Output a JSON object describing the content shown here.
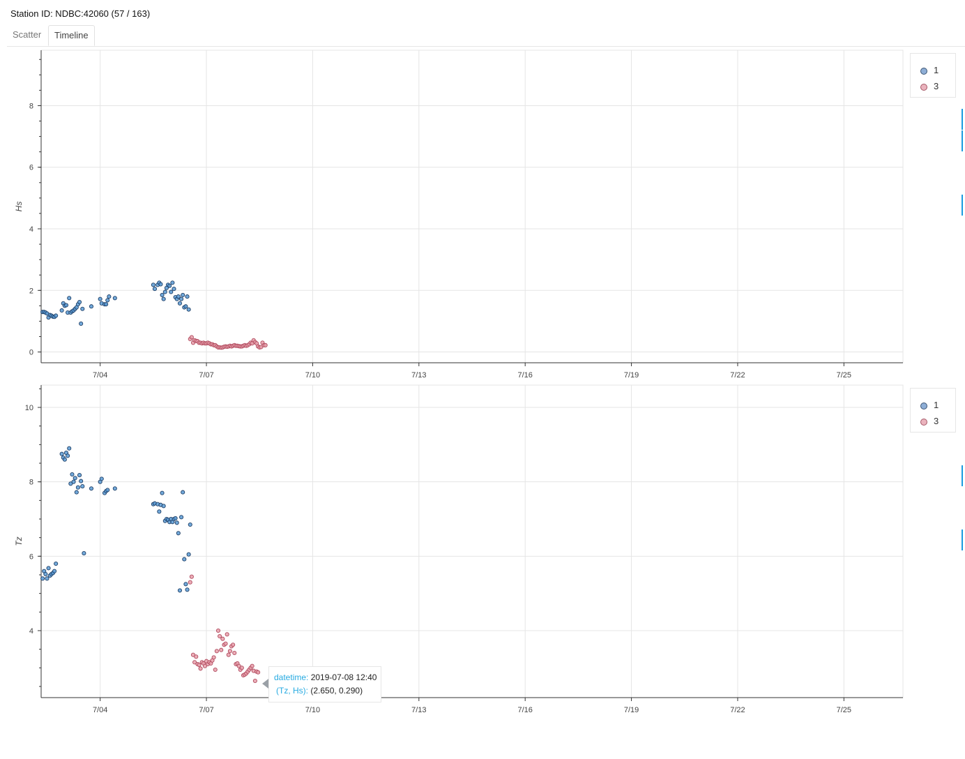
{
  "header": {
    "station_title": "Station ID: NDBC:42060 (57 / 163)"
  },
  "tabs": [
    {
      "label": "Scatter",
      "active": false
    },
    {
      "label": "Timeline",
      "active": true
    }
  ],
  "colors": {
    "series_1": "#5b9bd5",
    "series_1_edge": "#1f3f66",
    "series_3": "#e8a0ac",
    "series_3_edge": "#b04a5e",
    "grid": "#e5e5e5",
    "accent": "#1a9be0"
  },
  "tooltip": {
    "datetime_key": "datetime:",
    "datetime_value": "2019-07-08 12:40",
    "point_key": "(Tz, Hs):",
    "point_value": "(2.650, 0.290)"
  },
  "chart_data": [
    {
      "type": "scatter",
      "ylabel": "Hs",
      "xlabel": "",
      "x_unit": "days since 2019-07-01",
      "xlim_dates": [
        "2019-07-02 08:00",
        "2019-07-26 16:00"
      ],
      "ylim": [
        -0.35,
        9.8
      ],
      "x_ticks": [
        "7/04",
        "7/07",
        "7/10",
        "7/13",
        "7/16",
        "7/19",
        "7/22",
        "7/25"
      ],
      "y_ticks": [
        "0",
        "2",
        "4",
        "6",
        "8"
      ],
      "grid": true,
      "legend_position": "top-right",
      "legend": [
        "1",
        "3"
      ],
      "series": [
        {
          "name": "1",
          "points": [
            [
              "2019-07-02 09:00",
              1.3
            ],
            [
              "2019-07-02 10:00",
              1.3
            ],
            [
              "2019-07-02 11:00",
              1.28
            ],
            [
              "2019-07-02 12:00",
              1.25
            ],
            [
              "2019-07-02 13:00",
              1.12
            ],
            [
              "2019-07-02 14:00",
              1.2
            ],
            [
              "2019-07-02 15:00",
              1.18
            ],
            [
              "2019-07-02 16:00",
              1.15
            ],
            [
              "2019-07-02 17:00",
              1.14
            ],
            [
              "2019-07-02 18:00",
              1.18
            ],
            [
              "2019-07-02 22:00",
              1.35
            ],
            [
              "2019-07-02 23:00",
              1.58
            ],
            [
              "2019-07-03 00:00",
              1.5
            ],
            [
              "2019-07-03 01:00",
              1.52
            ],
            [
              "2019-07-03 02:00",
              1.28
            ],
            [
              "2019-07-03 03:00",
              1.75
            ],
            [
              "2019-07-03 04:00",
              1.28
            ],
            [
              "2019-07-03 05:00",
              1.32
            ],
            [
              "2019-07-03 06:00",
              1.35
            ],
            [
              "2019-07-03 07:00",
              1.4
            ],
            [
              "2019-07-03 08:00",
              1.45
            ],
            [
              "2019-07-03 09:00",
              1.55
            ],
            [
              "2019-07-03 10:00",
              1.62
            ],
            [
              "2019-07-03 11:00",
              0.92
            ],
            [
              "2019-07-03 12:00",
              1.4
            ],
            [
              "2019-07-03 18:00",
              1.48
            ],
            [
              "2019-07-04 00:00",
              1.72
            ],
            [
              "2019-07-04 01:00",
              1.58
            ],
            [
              "2019-07-04 03:00",
              1.55
            ],
            [
              "2019-07-04 04:00",
              1.55
            ],
            [
              "2019-07-04 05:00",
              1.68
            ],
            [
              "2019-07-04 06:00",
              1.8
            ],
            [
              "2019-07-04 10:00",
              1.75
            ],
            [
              "2019-07-05 12:00",
              2.18
            ],
            [
              "2019-07-05 13:00",
              2.05
            ],
            [
              "2019-07-05 15:00",
              2.18
            ],
            [
              "2019-07-05 16:00",
              2.25
            ],
            [
              "2019-07-05 17:00",
              2.2
            ],
            [
              "2019-07-05 18:00",
              1.85
            ],
            [
              "2019-07-05 19:00",
              1.72
            ],
            [
              "2019-07-05 20:00",
              1.95
            ],
            [
              "2019-07-05 21:00",
              2.08
            ],
            [
              "2019-07-05 22:00",
              2.18
            ],
            [
              "2019-07-05 23:00",
              2.15
            ],
            [
              "2019-07-06 00:00",
              1.95
            ],
            [
              "2019-07-06 01:00",
              2.25
            ],
            [
              "2019-07-06 02:00",
              2.05
            ],
            [
              "2019-07-06 03:00",
              1.78
            ],
            [
              "2019-07-06 04:00",
              1.72
            ],
            [
              "2019-07-06 05:00",
              1.8
            ],
            [
              "2019-07-06 06:00",
              1.58
            ],
            [
              "2019-07-06 07:00",
              1.72
            ],
            [
              "2019-07-06 08:00",
              1.85
            ],
            [
              "2019-07-06 09:00",
              1.45
            ],
            [
              "2019-07-06 10:00",
              1.48
            ],
            [
              "2019-07-06 11:00",
              1.8
            ],
            [
              "2019-07-06 12:00",
              1.38
            ]
          ]
        },
        {
          "name": "3",
          "points": [
            [
              "2019-07-06 13:00",
              0.42
            ],
            [
              "2019-07-06 14:00",
              0.48
            ],
            [
              "2019-07-06 15:00",
              0.3
            ],
            [
              "2019-07-06 16:00",
              0.38
            ],
            [
              "2019-07-06 17:00",
              0.36
            ],
            [
              "2019-07-06 18:00",
              0.35
            ],
            [
              "2019-07-06 19:00",
              0.3
            ],
            [
              "2019-07-06 20:00",
              0.3
            ],
            [
              "2019-07-06 21:00",
              0.28
            ],
            [
              "2019-07-06 22:00",
              0.3
            ],
            [
              "2019-07-06 23:00",
              0.28
            ],
            [
              "2019-07-07 00:00",
              0.28
            ],
            [
              "2019-07-07 01:00",
              0.3
            ],
            [
              "2019-07-07 02:00",
              0.28
            ],
            [
              "2019-07-07 03:00",
              0.25
            ],
            [
              "2019-07-07 04:00",
              0.25
            ],
            [
              "2019-07-07 05:00",
              0.22
            ],
            [
              "2019-07-07 06:00",
              0.22
            ],
            [
              "2019-07-07 07:00",
              0.18
            ],
            [
              "2019-07-07 08:00",
              0.15
            ],
            [
              "2019-07-07 09:00",
              0.15
            ],
            [
              "2019-07-07 10:00",
              0.14
            ],
            [
              "2019-07-07 11:00",
              0.15
            ],
            [
              "2019-07-07 12:00",
              0.17
            ],
            [
              "2019-07-07 13:00",
              0.18
            ],
            [
              "2019-07-07 14:00",
              0.17
            ],
            [
              "2019-07-07 15:00",
              0.18
            ],
            [
              "2019-07-07 16:00",
              0.2
            ],
            [
              "2019-07-07 17:00",
              0.18
            ],
            [
              "2019-07-07 18:00",
              0.2
            ],
            [
              "2019-07-07 19:00",
              0.22
            ],
            [
              "2019-07-07 20:00",
              0.2
            ],
            [
              "2019-07-07 21:00",
              0.2
            ],
            [
              "2019-07-07 22:00",
              0.19
            ],
            [
              "2019-07-07 23:00",
              0.18
            ],
            [
              "2019-07-08 00:00",
              0.18
            ],
            [
              "2019-07-08 01:00",
              0.2
            ],
            [
              "2019-07-08 02:00",
              0.22
            ],
            [
              "2019-07-08 03:00",
              0.2
            ],
            [
              "2019-07-08 04:00",
              0.22
            ],
            [
              "2019-07-08 05:00",
              0.25
            ],
            [
              "2019-07-08 06:00",
              0.3
            ],
            [
              "2019-07-08 07:00",
              0.28
            ],
            [
              "2019-07-08 08:00",
              0.38
            ],
            [
              "2019-07-08 09:00",
              0.32
            ],
            [
              "2019-07-08 10:00",
              0.28
            ],
            [
              "2019-07-08 11:00",
              0.18
            ],
            [
              "2019-07-08 12:00",
              0.15
            ],
            [
              "2019-07-08 13:00",
              0.16
            ],
            [
              "2019-07-08 14:00",
              0.3
            ],
            [
              "2019-07-08 15:00",
              0.22
            ],
            [
              "2019-07-08 16:00",
              0.22
            ]
          ]
        }
      ]
    },
    {
      "type": "scatter",
      "ylabel": "Tz",
      "xlabel": "",
      "x_unit": "days since 2019-07-01",
      "xlim_dates": [
        "2019-07-02 08:00",
        "2019-07-26 16:00"
      ],
      "ylim": [
        2.2,
        10.6
      ],
      "x_ticks": [
        "7/04",
        "7/07",
        "7/10",
        "7/13",
        "7/16",
        "7/19",
        "7/22",
        "7/25"
      ],
      "y_ticks": [
        "4",
        "6",
        "8",
        "10"
      ],
      "grid": true,
      "legend_position": "top-right",
      "legend": [
        "1",
        "3"
      ],
      "series": [
        {
          "name": "1",
          "points": [
            [
              "2019-07-02 09:00",
              5.4
            ],
            [
              "2019-07-02 10:00",
              5.6
            ],
            [
              "2019-07-02 11:00",
              5.52
            ],
            [
              "2019-07-02 12:00",
              5.4
            ],
            [
              "2019-07-02 13:00",
              5.68
            ],
            [
              "2019-07-02 14:00",
              5.48
            ],
            [
              "2019-07-02 15:00",
              5.52
            ],
            [
              "2019-07-02 16:00",
              5.55
            ],
            [
              "2019-07-02 17:00",
              5.6
            ],
            [
              "2019-07-02 18:00",
              5.8
            ],
            [
              "2019-07-02 22:00",
              8.75
            ],
            [
              "2019-07-02 23:00",
              8.65
            ],
            [
              "2019-07-03 00:00",
              8.6
            ],
            [
              "2019-07-03 01:00",
              8.78
            ],
            [
              "2019-07-03 02:00",
              8.7
            ],
            [
              "2019-07-03 03:00",
              8.9
            ],
            [
              "2019-07-03 04:00",
              7.95
            ],
            [
              "2019-07-03 05:00",
              8.2
            ],
            [
              "2019-07-03 06:00",
              8.0
            ],
            [
              "2019-07-03 07:00",
              8.1
            ],
            [
              "2019-07-03 08:00",
              7.72
            ],
            [
              "2019-07-03 09:00",
              7.85
            ],
            [
              "2019-07-03 10:00",
              8.18
            ],
            [
              "2019-07-03 11:00",
              8.02
            ],
            [
              "2019-07-03 12:00",
              7.88
            ],
            [
              "2019-07-03 13:00",
              6.08
            ],
            [
              "2019-07-03 18:00",
              7.82
            ],
            [
              "2019-07-04 00:00",
              8.0
            ],
            [
              "2019-07-04 01:00",
              8.08
            ],
            [
              "2019-07-04 03:00",
              7.7
            ],
            [
              "2019-07-04 04:00",
              7.75
            ],
            [
              "2019-07-04 05:00",
              7.78
            ],
            [
              "2019-07-04 10:00",
              7.82
            ],
            [
              "2019-07-05 12:00",
              7.4
            ],
            [
              "2019-07-05 13:00",
              7.42
            ],
            [
              "2019-07-05 15:00",
              7.4
            ],
            [
              "2019-07-05 16:00",
              7.2
            ],
            [
              "2019-07-05 17:00",
              7.38
            ],
            [
              "2019-07-05 18:00",
              7.7
            ],
            [
              "2019-07-05 19:00",
              7.35
            ],
            [
              "2019-07-05 20:00",
              6.95
            ],
            [
              "2019-07-05 21:00",
              7.0
            ],
            [
              "2019-07-05 22:00",
              6.98
            ],
            [
              "2019-07-05 23:00",
              6.92
            ],
            [
              "2019-07-06 00:00",
              7.0
            ],
            [
              "2019-07-06 01:00",
              6.92
            ],
            [
              "2019-07-06 02:00",
              7.0
            ],
            [
              "2019-07-06 03:00",
              7.02
            ],
            [
              "2019-07-06 04:00",
              6.9
            ],
            [
              "2019-07-06 05:00",
              6.62
            ],
            [
              "2019-07-06 06:00",
              5.08
            ],
            [
              "2019-07-06 07:00",
              7.05
            ],
            [
              "2019-07-06 08:00",
              7.72
            ],
            [
              "2019-07-06 09:00",
              5.92
            ],
            [
              "2019-07-06 10:00",
              5.25
            ],
            [
              "2019-07-06 11:00",
              5.1
            ],
            [
              "2019-07-06 12:00",
              6.05
            ],
            [
              "2019-07-06 13:00",
              6.85
            ]
          ]
        },
        {
          "name": "3",
          "points": [
            [
              "2019-07-06 13:00",
              5.3
            ],
            [
              "2019-07-06 14:00",
              5.45
            ],
            [
              "2019-07-06 15:00",
              3.35
            ],
            [
              "2019-07-06 16:00",
              3.15
            ],
            [
              "2019-07-06 17:00",
              3.3
            ],
            [
              "2019-07-06 18:00",
              3.1
            ],
            [
              "2019-07-06 19:00",
              3.08
            ],
            [
              "2019-07-06 20:00",
              2.98
            ],
            [
              "2019-07-06 21:00",
              3.15
            ],
            [
              "2019-07-06 22:00",
              3.12
            ],
            [
              "2019-07-06 23:00",
              3.05
            ],
            [
              "2019-07-07 00:00",
              3.18
            ],
            [
              "2019-07-07 01:00",
              3.1
            ],
            [
              "2019-07-07 02:00",
              3.15
            ],
            [
              "2019-07-07 03:00",
              3.12
            ],
            [
              "2019-07-07 04:00",
              3.2
            ],
            [
              "2019-07-07 05:00",
              3.28
            ],
            [
              "2019-07-07 06:00",
              2.95
            ],
            [
              "2019-07-07 07:00",
              3.45
            ],
            [
              "2019-07-07 08:00",
              4.0
            ],
            [
              "2019-07-07 09:00",
              3.85
            ],
            [
              "2019-07-07 10:00",
              3.48
            ],
            [
              "2019-07-07 11:00",
              3.78
            ],
            [
              "2019-07-07 12:00",
              3.62
            ],
            [
              "2019-07-07 13:00",
              3.65
            ],
            [
              "2019-07-07 14:00",
              3.9
            ],
            [
              "2019-07-07 15:00",
              3.35
            ],
            [
              "2019-07-07 16:00",
              3.45
            ],
            [
              "2019-07-07 17:00",
              3.58
            ],
            [
              "2019-07-07 18:00",
              3.62
            ],
            [
              "2019-07-07 19:00",
              3.4
            ],
            [
              "2019-07-07 20:00",
              3.1
            ],
            [
              "2019-07-07 21:00",
              3.12
            ],
            [
              "2019-07-07 22:00",
              3.05
            ],
            [
              "2019-07-07 23:00",
              2.95
            ],
            [
              "2019-07-08 00:00",
              3.0
            ],
            [
              "2019-07-08 01:00",
              2.8
            ],
            [
              "2019-07-08 02:00",
              2.82
            ],
            [
              "2019-07-08 03:00",
              2.85
            ],
            [
              "2019-07-08 04:00",
              2.9
            ],
            [
              "2019-07-08 05:00",
              2.95
            ],
            [
              "2019-07-08 06:00",
              3.0
            ],
            [
              "2019-07-08 07:00",
              3.05
            ],
            [
              "2019-07-08 08:00",
              2.92
            ],
            [
              "2019-07-08 09:00",
              2.65
            ],
            [
              "2019-07-08 10:00",
              2.9
            ],
            [
              "2019-07-08 11:00",
              2.88
            ]
          ]
        }
      ]
    }
  ]
}
